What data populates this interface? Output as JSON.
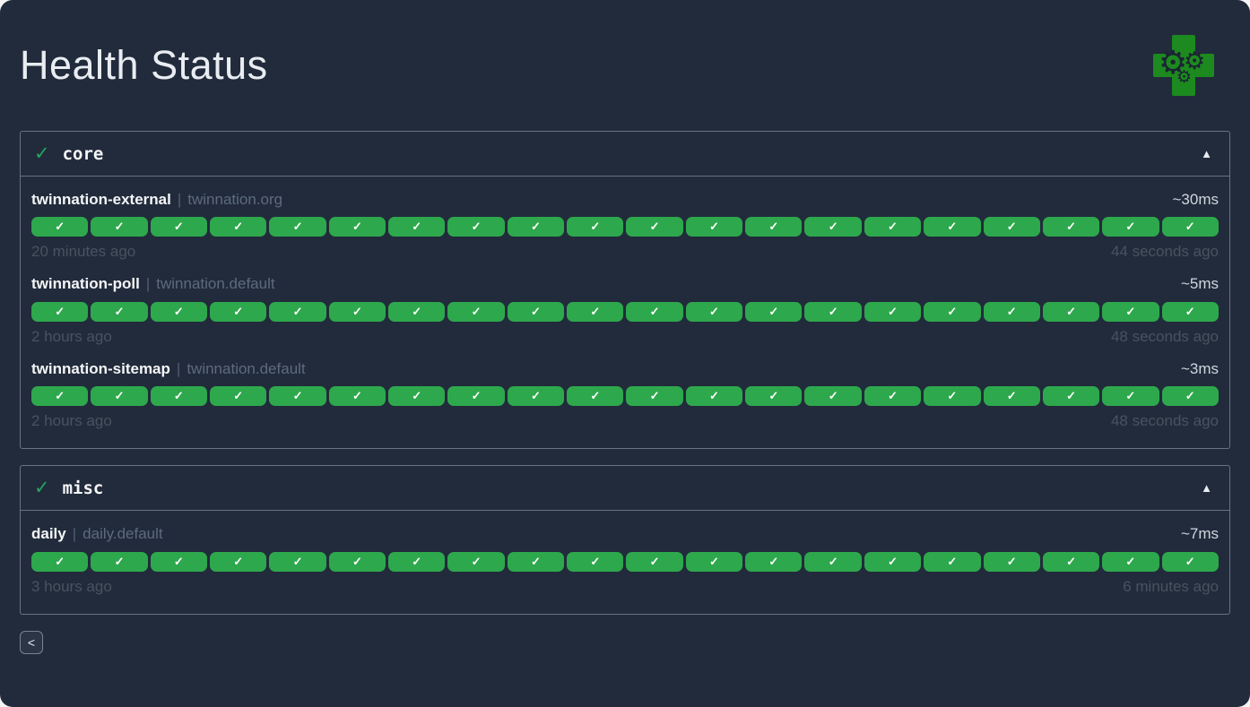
{
  "page": {
    "title": "Health Status",
    "back_button_label": "<"
  },
  "icons": {
    "check": "✓",
    "collapse_up": "▲",
    "gear": "⚙",
    "logo": "medical-cross-with-gears"
  },
  "colors": {
    "background": "#212b3b",
    "success_green": "#2ea84c",
    "logo_green": "#1c8a1e",
    "border_gray": "#6b7280",
    "muted_text": "#5d6b7d",
    "timestamp_text": "#48535f"
  },
  "groups": [
    {
      "name": "core",
      "status_icon": "✓",
      "collapse_icon": "▲",
      "collapsed": false,
      "endpoints": [
        {
          "name": "twinnation-external",
          "separator": "|",
          "suffix": "twinnation.org",
          "latency": "~30ms",
          "oldest": "20 minutes ago",
          "newest": "44 seconds ago",
          "results": {
            "total": 20,
            "up": 20,
            "status": "success"
          }
        },
        {
          "name": "twinnation-poll",
          "separator": "|",
          "suffix": "twinnation.default",
          "latency": "~5ms",
          "oldest": "2 hours ago",
          "newest": "48 seconds ago",
          "results": {
            "total": 20,
            "up": 20,
            "status": "success"
          }
        },
        {
          "name": "twinnation-sitemap",
          "separator": "|",
          "suffix": "twinnation.default",
          "latency": "~3ms",
          "oldest": "2 hours ago",
          "newest": "48 seconds ago",
          "results": {
            "total": 20,
            "up": 20,
            "status": "success"
          }
        }
      ]
    },
    {
      "name": "misc",
      "status_icon": "✓",
      "collapse_icon": "▲",
      "collapsed": false,
      "endpoints": [
        {
          "name": "daily",
          "separator": "|",
          "suffix": "daily.default",
          "latency": "~7ms",
          "oldest": "3 hours ago",
          "newest": "6 minutes ago",
          "results": {
            "total": 20,
            "up": 20,
            "status": "success"
          }
        }
      ]
    }
  ]
}
